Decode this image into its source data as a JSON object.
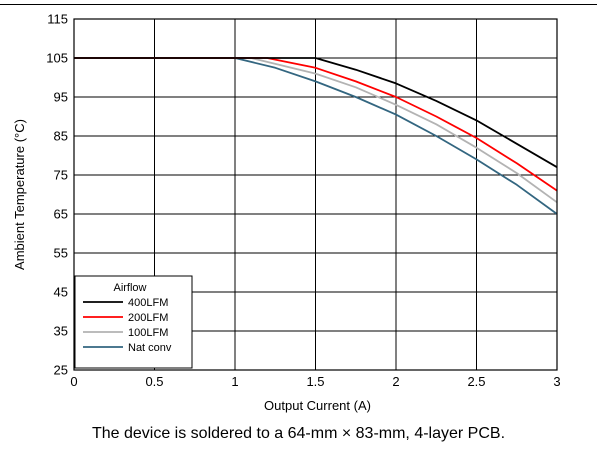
{
  "caption": "The device is soldered to a 64-mm × 83-mm, 4-layer PCB.",
  "chart_data": {
    "type": "line",
    "title": "",
    "xlabel": "Output Current (A)",
    "ylabel": "Ambient Temperature (°C)",
    "xlim": [
      0,
      3
    ],
    "ylim": [
      25,
      115
    ],
    "xticks": [
      0,
      0.5,
      1,
      1.5,
      2,
      2.5,
      3
    ],
    "xtick_labels": [
      "0",
      "0.5",
      "1",
      "1.5",
      "2",
      "2.5",
      "3"
    ],
    "yticks": [
      25,
      35,
      45,
      55,
      65,
      75,
      85,
      95,
      105,
      115
    ],
    "ytick_labels": [
      "25",
      "35",
      "45",
      "55",
      "65",
      "75",
      "85",
      "95",
      "105",
      "115"
    ],
    "grid": true,
    "legend": {
      "title": "Airflow",
      "placement": "bottom-left"
    },
    "series": [
      {
        "name": "400LFM",
        "color": "#000000",
        "x": [
          0,
          1,
          1.5,
          1.75,
          2,
          2.25,
          2.5,
          2.75,
          3
        ],
        "y": [
          105,
          105,
          105,
          102,
          98.5,
          94,
          89,
          83,
          77
        ]
      },
      {
        "name": "200LFM",
        "color": "#ff0000",
        "x": [
          0,
          1,
          1.2,
          1.5,
          1.75,
          2,
          2.25,
          2.5,
          2.75,
          3
        ],
        "y": [
          105,
          105,
          105,
          102.5,
          99,
          95,
          90,
          84.5,
          78,
          71
        ]
      },
      {
        "name": "100LFM",
        "color": "#b3b3b3",
        "x": [
          0,
          1,
          1.1,
          1.5,
          1.75,
          2,
          2.25,
          2.5,
          2.75,
          3
        ],
        "y": [
          105,
          105,
          105,
          101,
          97.5,
          93,
          88,
          82,
          75.5,
          68
        ]
      },
      {
        "name": "Nat conv",
        "color": "#336680",
        "x": [
          0,
          1,
          1.25,
          1.5,
          1.75,
          2,
          2.25,
          2.5,
          2.75,
          3
        ],
        "y": [
          105,
          105,
          102.5,
          99,
          95,
          90.5,
          85,
          79,
          72.5,
          65
        ]
      }
    ]
  }
}
